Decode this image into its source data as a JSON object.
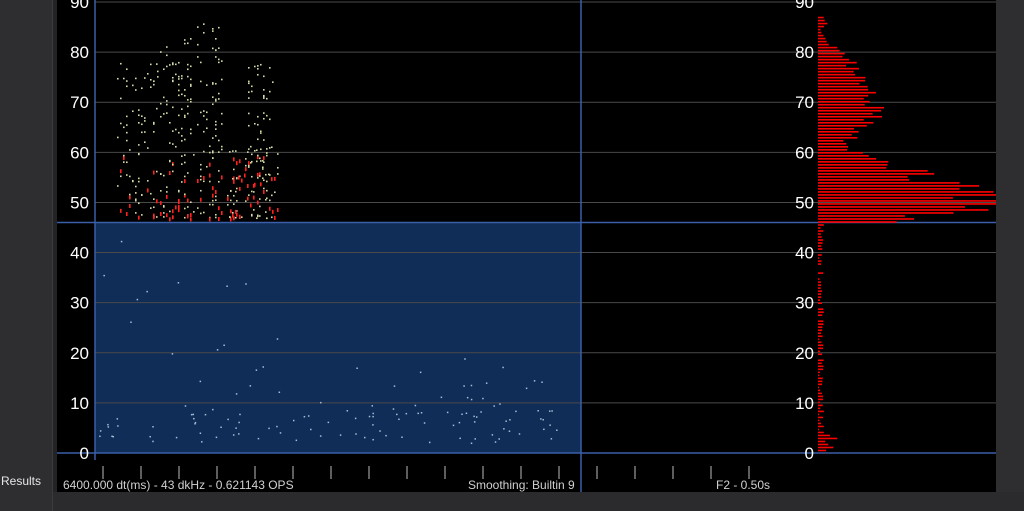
{
  "sidebar": {
    "results_label": "Results"
  },
  "status_bar": {
    "left": "6400.000 dt(ms) - 43 dkHz - 0.621143 OPS",
    "middle": "Smoothing: Builtin 9",
    "right": "F2 - 0.50s"
  },
  "colors": {
    "background": "#000000",
    "gridline": "#4a4a4a",
    "selection_fill": "#0f2d57",
    "selection_border": "#3a5fa8",
    "histogram": "#ff0000",
    "dot_high": "#d6dca8",
    "dot_mid": "#ff2020",
    "dot_low": "#a8bcd8"
  },
  "chart_data": [
    {
      "type": "scatter",
      "y_ticks": [
        "0",
        "10",
        "20",
        "30",
        "40",
        "50",
        "60",
        "70",
        "80",
        "90"
      ],
      "ylim": [
        0,
        90
      ],
      "selection_range": [
        0,
        46
      ]
    },
    {
      "type": "bar",
      "orientation": "horizontal",
      "y_ticks": [
        "0",
        "10",
        "20",
        "30",
        "40",
        "50",
        "60",
        "70",
        "80",
        "90"
      ],
      "ylim": [
        0,
        90
      ]
    }
  ]
}
